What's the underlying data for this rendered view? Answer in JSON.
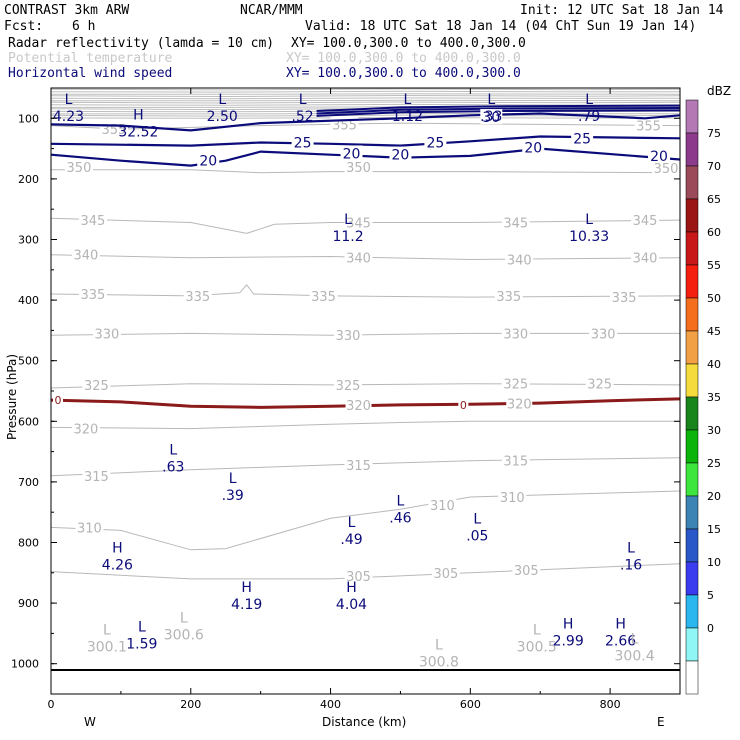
{
  "header": {
    "model": "CONTRAST  3km ARW",
    "center": "NCAR/MMM",
    "init": "Init: 12 UTC Sat 18 Jan 14",
    "fcst_label": "Fcst:",
    "fcst_value": "6 h",
    "valid": "Valid: 18 UTC Sat 18 Jan 14 (04 ChT Sun 19 Jan 14)"
  },
  "fields": [
    {
      "name": "Radar reflectivity (lamda = 10 cm)",
      "xy": "XY= 100.0,300.0 to 400.0,300.0",
      "color": "#000000"
    },
    {
      "name": "Potential temperature",
      "xy": "XY= 100.0,300.0 to 400.0,300.0",
      "color": "#c8c8c8"
    },
    {
      "name": "Horizontal wind speed",
      "xy": "XY= 100.0,300.0 to 400.0,300.0",
      "color": "#0b0b7a"
    }
  ],
  "chart_data": {
    "type": "cross-section contour",
    "xlabel": "Distance (km)",
    "ylabel": "Pressure (hPa)",
    "xlim": [
      0,
      900
    ],
    "ylim": [
      1050,
      50
    ],
    "x_ticks": [
      0,
      200,
      400,
      600,
      800
    ],
    "y_ticks": [
      100,
      200,
      300,
      400,
      500,
      600,
      700,
      800,
      900,
      1000
    ],
    "x_end_labels": {
      "left": "W",
      "right": "E"
    },
    "theta_contours": [
      {
        "value": 345,
        "points": [
          [
            0,
            265
          ],
          [
            200,
            272
          ],
          [
            280,
            290
          ],
          [
            320,
            275
          ],
          [
            400,
            272
          ],
          [
            600,
            272
          ],
          [
            900,
            268
          ]
        ]
      },
      {
        "value": 340,
        "points": [
          [
            0,
            325
          ],
          [
            200,
            330
          ],
          [
            400,
            328
          ],
          [
            600,
            333
          ],
          [
            900,
            330
          ]
        ]
      },
      {
        "value": 335,
        "points": [
          [
            0,
            390
          ],
          [
            200,
            393
          ],
          [
            270,
            388
          ],
          [
            280,
            375
          ],
          [
            290,
            390
          ],
          [
            400,
            393
          ],
          [
            600,
            395
          ],
          [
            900,
            393
          ]
        ]
      },
      {
        "value": 330,
        "points": [
          [
            0,
            458
          ],
          [
            200,
            455
          ],
          [
            400,
            458
          ],
          [
            600,
            455
          ],
          [
            900,
            455
          ]
        ]
      },
      {
        "value": 325,
        "points": [
          [
            0,
            545
          ],
          [
            200,
            538
          ],
          [
            400,
            540
          ],
          [
            600,
            538
          ],
          [
            900,
            540
          ]
        ]
      },
      {
        "value": 320,
        "points": [
          [
            0,
            610
          ],
          [
            200,
            612
          ],
          [
            400,
            605
          ],
          [
            500,
            602
          ],
          [
            600,
            600
          ],
          [
            900,
            600
          ]
        ]
      },
      {
        "value": 315,
        "points": [
          [
            0,
            690
          ],
          [
            200,
            680
          ],
          [
            400,
            672
          ],
          [
            600,
            665
          ],
          [
            900,
            660
          ]
        ]
      },
      {
        "value": 310,
        "points": [
          [
            0,
            775
          ],
          [
            100,
            780
          ],
          [
            200,
            812
          ],
          [
            250,
            810
          ],
          [
            400,
            760
          ],
          [
            500,
            745
          ],
          [
            600,
            725
          ],
          [
            900,
            715
          ]
        ]
      },
      {
        "value": 305,
        "points": [
          [
            0,
            848
          ],
          [
            200,
            860
          ],
          [
            400,
            860
          ],
          [
            600,
            850
          ],
          [
            900,
            835
          ]
        ]
      },
      {
        "value": 350,
        "points": [
          [
            0,
            185
          ],
          [
            200,
            185
          ],
          [
            300,
            190
          ],
          [
            400,
            188
          ],
          [
            600,
            188
          ],
          [
            900,
            190
          ]
        ]
      },
      {
        "value": 355,
        "points": [
          [
            0,
            112
          ],
          [
            100,
            118
          ],
          [
            300,
            112
          ],
          [
            500,
            108
          ],
          [
            700,
            110
          ],
          [
            900,
            112
          ]
        ]
      }
    ],
    "theta_contour_labels": [
      {
        "text": "345",
        "x": 60,
        "p": 268
      },
      {
        "text": "345",
        "x": 440,
        "p": 272
      },
      {
        "text": "345",
        "x": 665,
        "p": 272
      },
      {
        "text": "345",
        "x": 850,
        "p": 268
      },
      {
        "text": "340",
        "x": 50,
        "p": 325
      },
      {
        "text": "340",
        "x": 440,
        "p": 330
      },
      {
        "text": "340",
        "x": 670,
        "p": 333
      },
      {
        "text": "340",
        "x": 850,
        "p": 330
      },
      {
        "text": "335",
        "x": 60,
        "p": 390
      },
      {
        "text": "335",
        "x": 210,
        "p": 393
      },
      {
        "text": "335",
        "x": 390,
        "p": 393
      },
      {
        "text": "335",
        "x": 655,
        "p": 393
      },
      {
        "text": "335",
        "x": 820,
        "p": 395
      },
      {
        "text": "330",
        "x": 80,
        "p": 455
      },
      {
        "text": "330",
        "x": 425,
        "p": 458
      },
      {
        "text": "330",
        "x": 665,
        "p": 455
      },
      {
        "text": "330",
        "x": 790,
        "p": 455
      },
      {
        "text": "325",
        "x": 65,
        "p": 540
      },
      {
        "text": "325",
        "x": 425,
        "p": 540
      },
      {
        "text": "325",
        "x": 665,
        "p": 538
      },
      {
        "text": "325",
        "x": 785,
        "p": 538
      },
      {
        "text": "320",
        "x": 50,
        "p": 612
      },
      {
        "text": "315",
        "x": 65,
        "p": 690
      },
      {
        "text": "315",
        "x": 440,
        "p": 672
      },
      {
        "text": "315",
        "x": 665,
        "p": 665
      },
      {
        "text": "310",
        "x": 55,
        "p": 775
      },
      {
        "text": "310",
        "x": 560,
        "p": 738
      },
      {
        "text": "310",
        "x": 660,
        "p": 725
      },
      {
        "text": "305",
        "x": 440,
        "p": 855
      },
      {
        "text": "305",
        "x": 565,
        "p": 850
      },
      {
        "text": "305",
        "x": 680,
        "p": 845
      },
      {
        "text": "350",
        "x": 40,
        "p": 180
      },
      {
        "text": "350",
        "x": 440,
        "p": 180
      },
      {
        "text": "350",
        "x": 880,
        "p": 182
      },
      {
        "text": "355",
        "x": 90,
        "p": 118
      },
      {
        "text": "355",
        "x": 420,
        "p": 110
      },
      {
        "text": "355",
        "x": 855,
        "p": 112
      }
    ],
    "wind_contours": [
      {
        "value": 20,
        "points": [
          [
            0,
            160
          ],
          [
            100,
            170
          ],
          [
            200,
            178
          ],
          [
            250,
            170
          ],
          [
            300,
            155
          ],
          [
            400,
            160
          ],
          [
            500,
            165
          ],
          [
            600,
            162
          ],
          [
            700,
            150
          ],
          [
            900,
            168
          ]
        ]
      },
      {
        "value": 25,
        "points": [
          [
            0,
            142
          ],
          [
            200,
            145
          ],
          [
            300,
            140
          ],
          [
            400,
            142
          ],
          [
            500,
            145
          ],
          [
            600,
            138
          ],
          [
            700,
            130
          ],
          [
            900,
            133
          ]
        ]
      },
      {
        "value": 30,
        "points": [
          [
            0,
            110
          ],
          [
            100,
            112
          ],
          [
            200,
            120
          ],
          [
            300,
            108
          ],
          [
            500,
            100
          ],
          [
            600,
            95
          ],
          [
            700,
            92
          ],
          [
            850,
            100
          ],
          [
            900,
            95
          ]
        ]
      }
    ],
    "wind_contour_labels": [
      {
        "text": "20",
        "x": 225,
        "p": 170
      },
      {
        "text": "20",
        "x": 430,
        "p": 158
      },
      {
        "text": "20",
        "x": 500,
        "p": 160
      },
      {
        "text": "20",
        "x": 690,
        "p": 148
      },
      {
        "text": "20",
        "x": 870,
        "p": 162
      },
      {
        "text": "25",
        "x": 360,
        "p": 140
      },
      {
        "text": "25",
        "x": 550,
        "p": 140
      },
      {
        "text": "25",
        "x": 760,
        "p": 133
      },
      {
        "text": "30",
        "x": 630,
        "p": 98
      }
    ],
    "low_high_markers": [
      {
        "kind": "L",
        "value": "4.23",
        "x": 25,
        "p": 90,
        "color": "navy"
      },
      {
        "kind": "L",
        "value": "2.50",
        "x": 245,
        "p": 90,
        "color": "navy"
      },
      {
        "kind": "L",
        "value": ".52",
        "x": 360,
        "p": 90,
        "color": "navy"
      },
      {
        "kind": "L",
        "value": "1.12",
        "x": 510,
        "p": 90,
        "color": "navy"
      },
      {
        "kind": "L",
        "value": ".33",
        "x": 630,
        "p": 90,
        "color": "navy"
      },
      {
        "kind": "L",
        "value": ".79",
        "x": 770,
        "p": 90,
        "color": "navy"
      },
      {
        "kind": "H",
        "value": "32.52",
        "x": 125,
        "p": 115,
        "color": "navy"
      },
      {
        "kind": "L",
        "value": "11.2",
        "x": 425,
        "p": 288,
        "color": "navy"
      },
      {
        "kind": "L",
        "value": "10.33",
        "x": 770,
        "p": 288,
        "color": "navy"
      },
      {
        "kind": "L",
        "value": ".63",
        "x": 175,
        "p": 668,
        "color": "navy"
      },
      {
        "kind": "L",
        "value": ".39",
        "x": 260,
        "p": 715,
        "color": "navy"
      },
      {
        "kind": "L",
        "value": ".46",
        "x": 500,
        "p": 752,
        "color": "navy"
      },
      {
        "kind": "L",
        "value": ".49",
        "x": 430,
        "p": 788,
        "color": "navy"
      },
      {
        "kind": "L",
        "value": ".05",
        "x": 610,
        "p": 782,
        "color": "navy"
      },
      {
        "kind": "H",
        "value": "4.26",
        "x": 95,
        "p": 830,
        "color": "navy"
      },
      {
        "kind": "L",
        "value": ".16",
        "x": 830,
        "p": 830,
        "color": "navy"
      },
      {
        "kind": "H",
        "value": "4.19",
        "x": 280,
        "p": 895,
        "color": "navy"
      },
      {
        "kind": "H",
        "value": "4.04",
        "x": 430,
        "p": 895,
        "color": "navy"
      },
      {
        "kind": "L",
        "value": "1.59",
        "x": 130,
        "p": 960,
        "color": "navy"
      },
      {
        "kind": "H",
        "value": "2.99",
        "x": 740,
        "p": 955,
        "color": "navy"
      },
      {
        "kind": "H",
        "value": "2.66",
        "x": 815,
        "p": 955,
        "color": "navy"
      },
      {
        "kind": "L",
        "value": "300.1",
        "x": 80,
        "p": 965,
        "color": "grey"
      },
      {
        "kind": "L",
        "value": "300.6",
        "x": 190,
        "p": 945,
        "color": "grey"
      },
      {
        "kind": "L",
        "value": "300.8",
        "x": 555,
        "p": 990,
        "color": "grey"
      },
      {
        "kind": "L",
        "value": "300.5",
        "x": 695,
        "p": 965,
        "color": "grey"
      },
      {
        "kind": "L",
        "value": "300.4",
        "x": 835,
        "p": 980,
        "color": "grey"
      }
    ],
    "zero_line": {
      "label": "0",
      "points": [
        [
          0,
          565
        ],
        [
          100,
          568
        ],
        [
          200,
          575
        ],
        [
          300,
          577
        ],
        [
          400,
          575
        ],
        [
          500,
          573
        ],
        [
          600,
          572
        ],
        [
          700,
          570
        ],
        [
          800,
          566
        ],
        [
          900,
          563
        ]
      ]
    },
    "zero_line_label_positions": [
      {
        "x": 10,
        "p": 565
      },
      {
        "x": 590,
        "p": 573
      }
    ],
    "zero_line_theta_labels": [
      {
        "text": "320",
        "x": 440,
        "p": 575
      },
      {
        "text": "320",
        "x": 670,
        "p": 572
      }
    ],
    "colorbar": {
      "label": "dBZ",
      "tick_labels": [
        "0",
        "5",
        "10",
        "15",
        "20",
        "25",
        "30",
        "35",
        "40",
        "45",
        "50",
        "55",
        "60",
        "65",
        "70",
        "75"
      ],
      "colors": [
        "#ffffff",
        "#8ff5f5",
        "#2ab7f0",
        "#3b3bf0",
        "#2b58c8",
        "#3c84b4",
        "#3ce63c",
        "#0ab40a",
        "#17851c",
        "#f5dc3c",
        "#f2a046",
        "#f56e1e",
        "#f51f10",
        "#c81818",
        "#9b1515",
        "#9b4a5a",
        "#8c3a8c",
        "#b478b4"
      ]
    }
  }
}
